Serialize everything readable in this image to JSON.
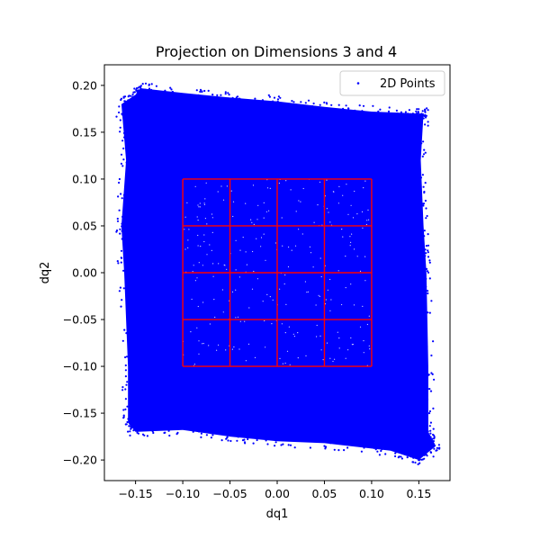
{
  "chart_data": {
    "type": "scatter",
    "title": "Projection on Dimensions 3 and 4",
    "xlabel": "dq1",
    "ylabel": "dq2",
    "xlim": [
      -0.183,
      0.183
    ],
    "ylim": [
      -0.222,
      0.222
    ],
    "x_ticks": [
      -0.15,
      -0.1,
      -0.05,
      0.0,
      0.05,
      0.1,
      0.15
    ],
    "x_tick_labels": [
      "−0.15",
      "−0.10",
      "−0.05",
      "0.00",
      "0.05",
      "0.10",
      "0.15"
    ],
    "y_ticks": [
      -0.2,
      -0.15,
      -0.1,
      -0.05,
      0.0,
      0.05,
      0.1,
      0.15,
      0.2
    ],
    "y_tick_labels": [
      "−0.20",
      "−0.15",
      "−0.10",
      "−0.05",
      "0.00",
      "0.05",
      "0.10",
      "0.15",
      "0.20"
    ],
    "grid": false,
    "legend": {
      "placement": "upper right",
      "entries": [
        "2D Points"
      ]
    },
    "series": [
      {
        "name": "2D Points",
        "color": "#0000ff",
        "marker": "dot",
        "outline_points": [
          [
            -0.165,
            0.18
          ],
          [
            -0.15,
            0.19
          ],
          [
            -0.145,
            0.197
          ],
          [
            -0.1,
            0.192
          ],
          [
            -0.05,
            0.187
          ],
          [
            0.0,
            0.183
          ],
          [
            0.05,
            0.177
          ],
          [
            0.1,
            0.172
          ],
          [
            0.15,
            0.17
          ],
          [
            0.155,
            0.17
          ],
          [
            0.152,
            0.12
          ],
          [
            0.155,
            0.05
          ],
          [
            0.158,
            0.0
          ],
          [
            0.16,
            -0.1
          ],
          [
            0.16,
            -0.17
          ],
          [
            0.168,
            -0.185
          ],
          [
            0.15,
            -0.2
          ],
          [
            0.12,
            -0.19
          ],
          [
            0.05,
            -0.182
          ],
          [
            0.0,
            -0.18
          ],
          [
            -0.05,
            -0.175
          ],
          [
            -0.1,
            -0.168
          ],
          [
            -0.15,
            -0.17
          ],
          [
            -0.158,
            -0.16
          ],
          [
            -0.158,
            -0.1
          ],
          [
            -0.162,
            0.0
          ],
          [
            -0.165,
            0.05
          ],
          [
            -0.16,
            0.12
          ]
        ]
      }
    ],
    "overlay_grid": {
      "color": "#ff0000",
      "x_lines": [
        -0.1,
        -0.05,
        0.0,
        0.05,
        0.1
      ],
      "y_lines": [
        -0.1,
        -0.05,
        0.0,
        0.05,
        0.1
      ]
    },
    "colors": {
      "points": "#0000ff",
      "overlay": "#ff0000",
      "text": "#000000",
      "axes": "#000000"
    }
  }
}
